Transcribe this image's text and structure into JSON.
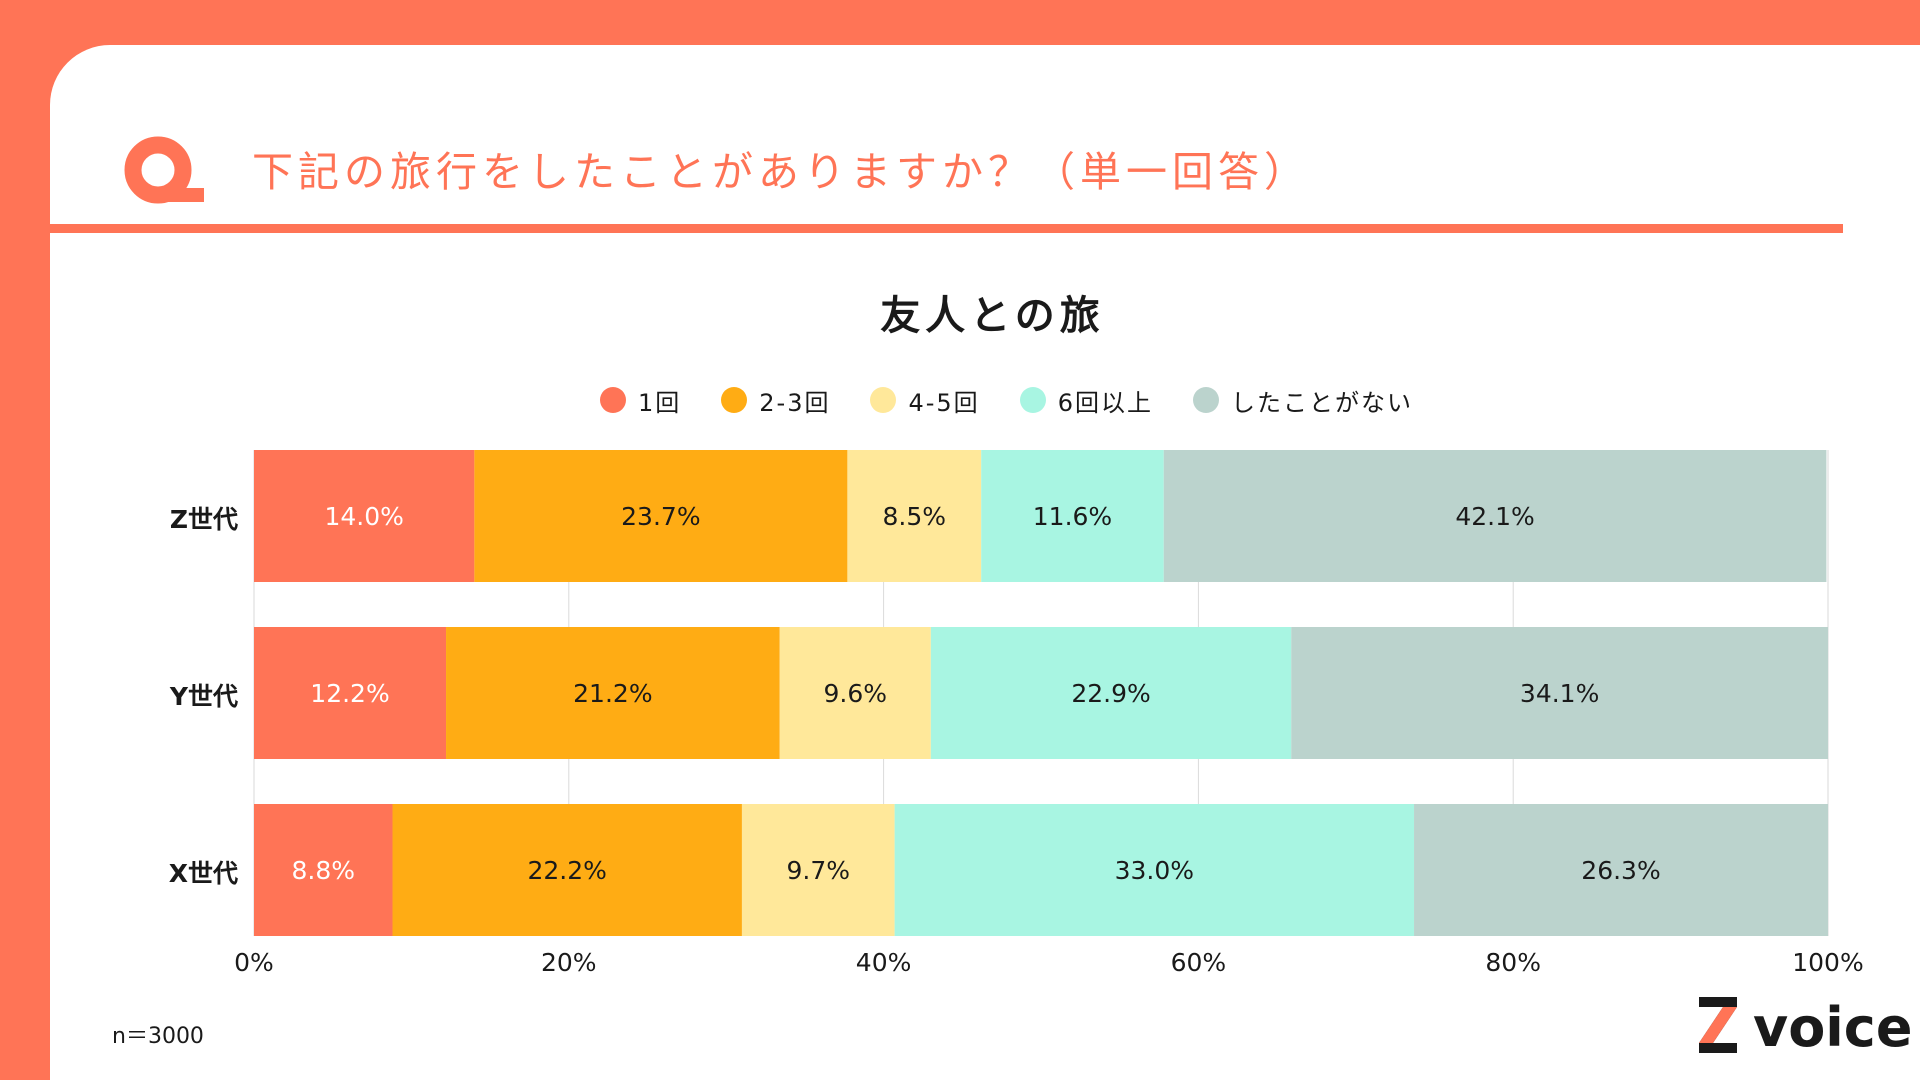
{
  "header": {
    "question_text": "下記の旅行をしたことがありますか？（単一回答）"
  },
  "chart_data": {
    "type": "bar",
    "orientation": "horizontal-stacked-100",
    "title": "友人との旅",
    "categories": [
      "Z世代",
      "Y世代",
      "X世代"
    ],
    "series": [
      {
        "name": "1回",
        "color": "#FF7456",
        "label_color": "#ffffff",
        "values": [
          14.0,
          12.2,
          8.8
        ]
      },
      {
        "name": "2-3回",
        "color": "#FFAC14",
        "label_color": "#1a1a1a",
        "values": [
          23.7,
          21.2,
          22.2
        ]
      },
      {
        "name": "4-5回",
        "color": "#FFE89A",
        "label_color": "#1a1a1a",
        "values": [
          8.5,
          9.6,
          9.7
        ]
      },
      {
        "name": "6回以上",
        "color": "#A8F5E2",
        "label_color": "#1a1a1a",
        "values": [
          11.6,
          22.9,
          33.0
        ]
      },
      {
        "name": "したことがない",
        "color": "#BBD3CD",
        "label_color": "#1a1a1a",
        "values": [
          42.1,
          34.1,
          26.3
        ]
      }
    ],
    "data_labels": [
      [
        "14.0%",
        "23.7%",
        "8.5%",
        "11.6%",
        "42.1%"
      ],
      [
        "12.2%",
        "21.2%",
        "9.6%",
        "22.9%",
        "34.1%"
      ],
      [
        "8.8%",
        "22.2%",
        "9.7%",
        "33.0%",
        "26.3%"
      ]
    ],
    "xaxis": {
      "range": [
        0,
        100
      ],
      "ticks": [
        0,
        20,
        40,
        60,
        80,
        100
      ],
      "tick_labels": [
        "0%",
        "20%",
        "40%",
        "60%",
        "80%",
        "100%"
      ]
    },
    "grid": true,
    "legend_position": "top-center"
  },
  "footer": {
    "sample_size": "n＝3000",
    "brand_logo_text": "Z voice"
  },
  "colors": {
    "accent": "#FF7456",
    "background": "#ffffff",
    "text": "#1a1a1a"
  }
}
